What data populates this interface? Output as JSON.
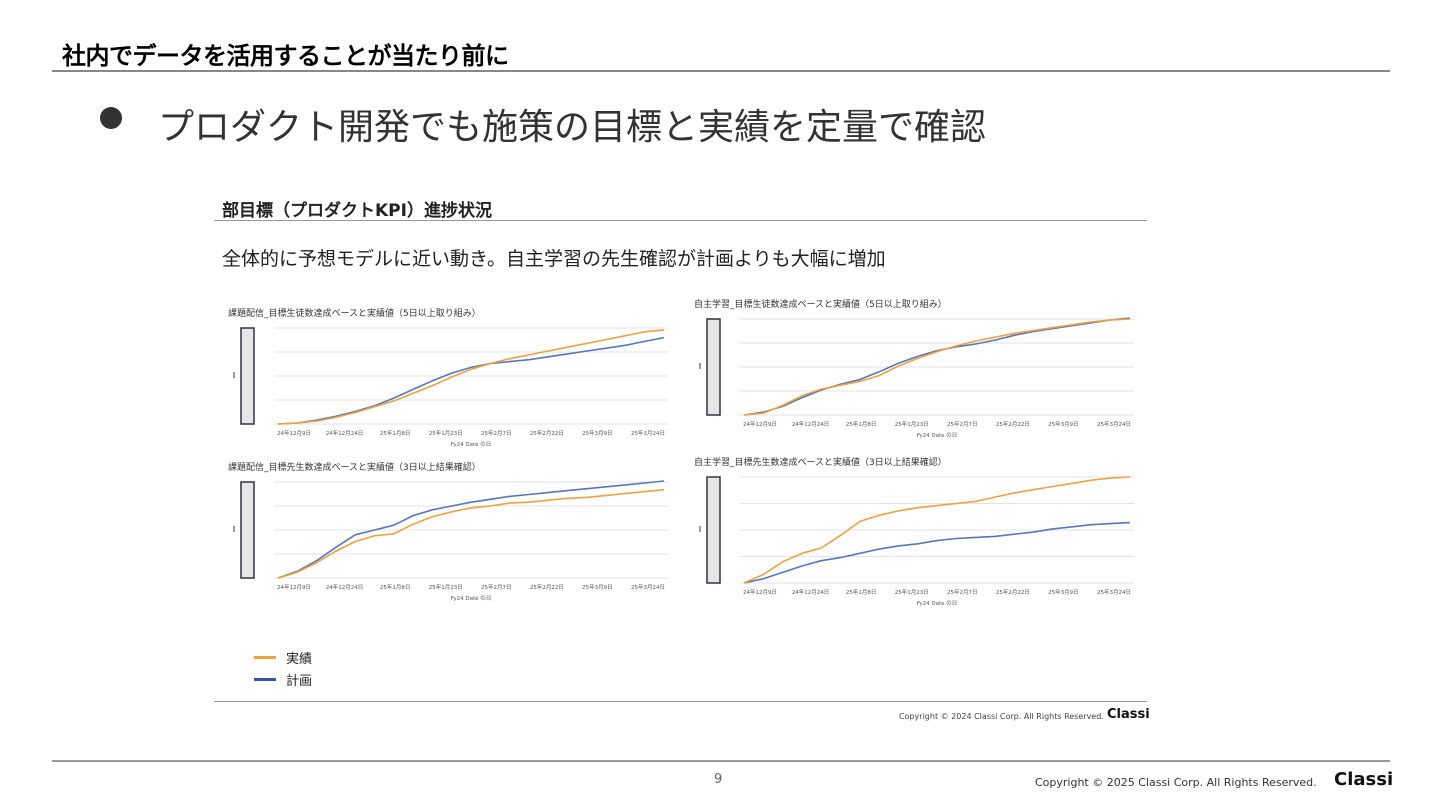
{
  "slide": {
    "title": "社内でデータを活用することが当たり前に",
    "bullet": "プロダクト開発でも施策の目標と実績を定量で確認"
  },
  "embedded": {
    "section_title": "部目標（プロダクトKPI）進捗状況",
    "summary": "全体的に予想モデルに近い動き。自主学習の先生確認が計画よりも大幅に増加",
    "legend": {
      "actual": "実績",
      "plan": "計画"
    },
    "copyright": "Copyright © 2024 Classi Corp. All Rights Reserved.",
    "logo": "Classi"
  },
  "footer": {
    "page_number": "9",
    "copyright": "Copyright © 2025 Classi Corp. All Rights Reserved.",
    "logo": "Classi"
  },
  "colors": {
    "actual": "#F0A040",
    "plan": "#5577BB"
  },
  "chart_data": [
    {
      "type": "line",
      "title": "課題配信_目標生徒数達成ペースと実績値（5日以上取り組み）",
      "xlabel": "Fy24 Date の日",
      "x_ticks": [
        "24年12月9日",
        "24年12月24日",
        "25年1月8日",
        "25年1月23日",
        "25年2月7日",
        "25年2月22日",
        "25年3月9日",
        "25年3月24日"
      ],
      "x": [
        0,
        1,
        2,
        3,
        4,
        5,
        6,
        7,
        8,
        9,
        10,
        11,
        12,
        13,
        14,
        15,
        16,
        17,
        18,
        19,
        20
      ],
      "ylim": [
        0,
        100
      ],
      "series": [
        {
          "name": "実績",
          "values": [
            0,
            1,
            3,
            7,
            12,
            18,
            24,
            32,
            40,
            49,
            57,
            63,
            68,
            72,
            76,
            80,
            84,
            88,
            92,
            96,
            98
          ]
        },
        {
          "name": "計画",
          "values": [
            0,
            1,
            4,
            8,
            13,
            19,
            27,
            36,
            45,
            53,
            59,
            63,
            65,
            67,
            70,
            73,
            76,
            79,
            82,
            86,
            90
          ]
        }
      ]
    },
    {
      "type": "line",
      "title": "自主学習_目標生徒数達成ペースと実績値（5日以上取り組み）",
      "xlabel": "Fy24 Date の日",
      "x_ticks": [
        "24年12月9日",
        "24年12月24日",
        "25年1月8日",
        "25年1月23日",
        "25年2月7日",
        "25年2月22日",
        "25年3月9日",
        "25年3月24日"
      ],
      "x": [
        0,
        1,
        2,
        3,
        4,
        5,
        6,
        7,
        8,
        9,
        10,
        11,
        12,
        13,
        14,
        15,
        16,
        17,
        18,
        19,
        20
      ],
      "ylim": [
        0,
        100
      ],
      "series": [
        {
          "name": "実績",
          "values": [
            0,
            2,
            10,
            20,
            27,
            31,
            35,
            41,
            51,
            59,
            66,
            72,
            77,
            81,
            85,
            88,
            91,
            94,
            97,
            99,
            100
          ]
        },
        {
          "name": "計画",
          "values": [
            0,
            3,
            9,
            18,
            26,
            32,
            37,
            45,
            54,
            61,
            67,
            71,
            74,
            78,
            83,
            87,
            90,
            93,
            96,
            99,
            101
          ]
        }
      ]
    },
    {
      "type": "line",
      "title": "課題配信_目標先生数達成ペースと実績値（3日以上結果確認）",
      "xlabel": "Fy24 Date の日",
      "x_ticks": [
        "24年12月9日",
        "24年12月24日",
        "25年1月8日",
        "25年1月23日",
        "25年2月7日",
        "25年2月22日",
        "25年3月9日",
        "25年3月24日"
      ],
      "x": [
        0,
        1,
        2,
        3,
        4,
        5,
        6,
        7,
        8,
        9,
        10,
        11,
        12,
        13,
        14,
        15,
        16,
        17,
        18,
        19,
        20
      ],
      "ylim": [
        0,
        100
      ],
      "series": [
        {
          "name": "実績",
          "values": [
            0,
            6,
            16,
            28,
            38,
            44,
            46,
            56,
            64,
            69,
            73,
            75,
            78,
            79,
            81,
            83,
            84,
            86,
            88,
            90,
            92
          ]
        },
        {
          "name": "計画",
          "values": [
            0,
            7,
            18,
            32,
            45,
            50,
            55,
            65,
            71,
            75,
            79,
            82,
            85,
            87,
            89,
            91,
            93,
            95,
            97,
            99,
            101
          ]
        }
      ]
    },
    {
      "type": "line",
      "title": "自主学習_目標先生数達成ペースと実績値（3日以上結果確認）",
      "xlabel": "Fy24 Date の日",
      "x_ticks": [
        "24年12月9日",
        "24年12月24日",
        "25年1月8日",
        "25年1月23日",
        "25年2月7日",
        "25年2月22日",
        "25年3月9日",
        "25年3月24日"
      ],
      "x": [
        0,
        1,
        2,
        3,
        4,
        5,
        6,
        7,
        8,
        9,
        10,
        11,
        12,
        13,
        14,
        15,
        16,
        17,
        18,
        19,
        20
      ],
      "ylim": [
        0,
        100
      ],
      "series": [
        {
          "name": "実績",
          "values": [
            0,
            8,
            20,
            28,
            33,
            45,
            58,
            64,
            68,
            71,
            73,
            75,
            77,
            81,
            85,
            88,
            91,
            94,
            97,
            99,
            100
          ]
        },
        {
          "name": "計画",
          "values": [
            0,
            4,
            10,
            16,
            21,
            24,
            28,
            32,
            35,
            37,
            40,
            42,
            43,
            44,
            46,
            48,
            51,
            53,
            55,
            56,
            57
          ]
        }
      ]
    }
  ]
}
